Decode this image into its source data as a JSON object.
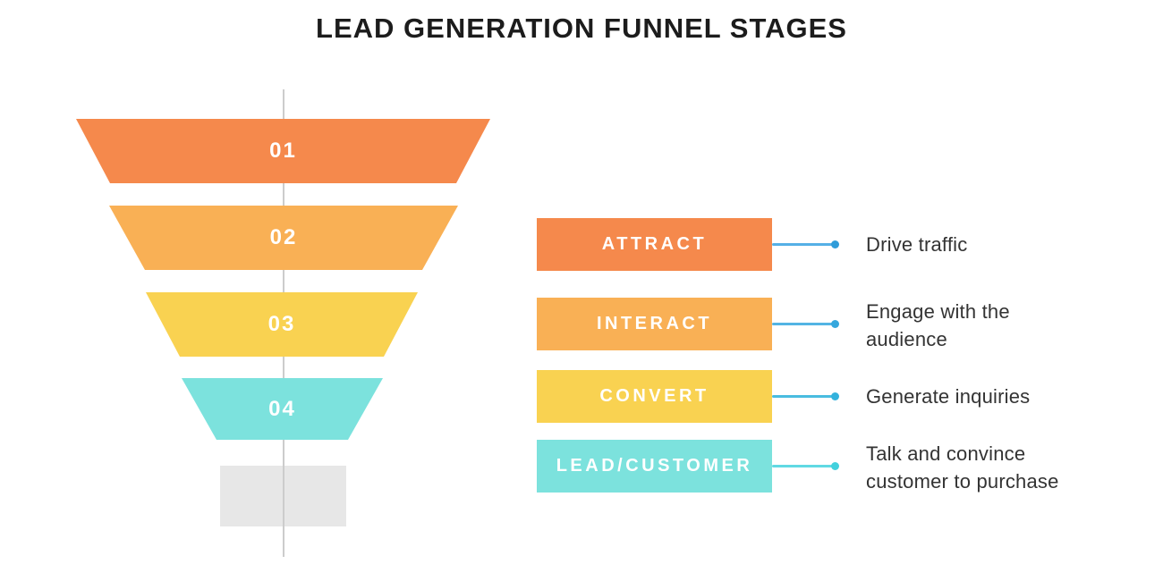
{
  "title": "LEAD GENERATION FUNNEL STAGES",
  "colors": {
    "background": "#ffffff",
    "axis_line": "#cccccc",
    "funnel_base": "#e7e7e7",
    "description_text": "#333333"
  },
  "funnel": {
    "stages": [
      {
        "number": "01",
        "color": "#f5894c"
      },
      {
        "number": "02",
        "color": "#f9b055"
      },
      {
        "number": "03",
        "color": "#f9d251"
      },
      {
        "number": "04",
        "color": "#7ce2dd"
      }
    ]
  },
  "legend": {
    "rows": [
      {
        "label": "ATTRACT",
        "color": "#f5894c",
        "description": "Drive traffic",
        "line_color": "#55b0e6",
        "dot_color": "#2f9cd9"
      },
      {
        "label": "INTERACT",
        "color": "#f9b055",
        "description": "Engage with the audience",
        "line_color": "#52b4e4",
        "dot_color": "#35a7dd"
      },
      {
        "label": "CONVERT",
        "color": "#f9d251",
        "description": "Generate inquiries",
        "line_color": "#49bce0",
        "dot_color": "#33b2dd"
      },
      {
        "label": "LEAD/CUSTOMER",
        "color": "#7ce2dd",
        "description": "Talk and convince customer to purchase",
        "line_color": "#61d9e3",
        "dot_color": "#41d1dd"
      }
    ]
  }
}
